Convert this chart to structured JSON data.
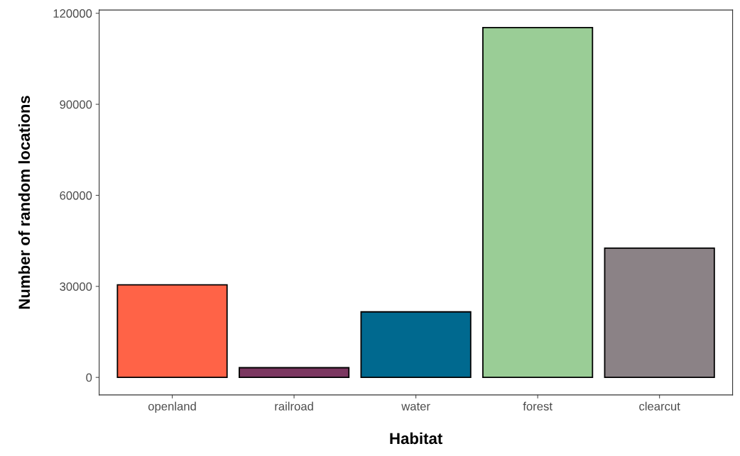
{
  "chart_data": {
    "type": "bar",
    "xlabel": "Habitat",
    "ylabel": "Number of random locations",
    "categories": [
      "openland",
      "railroad",
      "water",
      "forest",
      "clearcut"
    ],
    "values": [
      30500,
      3200,
      21600,
      115300,
      42600
    ],
    "colors": [
      "#ff6347",
      "#7b3760",
      "#00698f",
      "#9acd96",
      "#8b8286"
    ],
    "ylim": [
      -5765,
      121065
    ],
    "yticks": [
      0,
      30000,
      60000,
      90000,
      120000
    ],
    "grid": false,
    "legend": false
  }
}
